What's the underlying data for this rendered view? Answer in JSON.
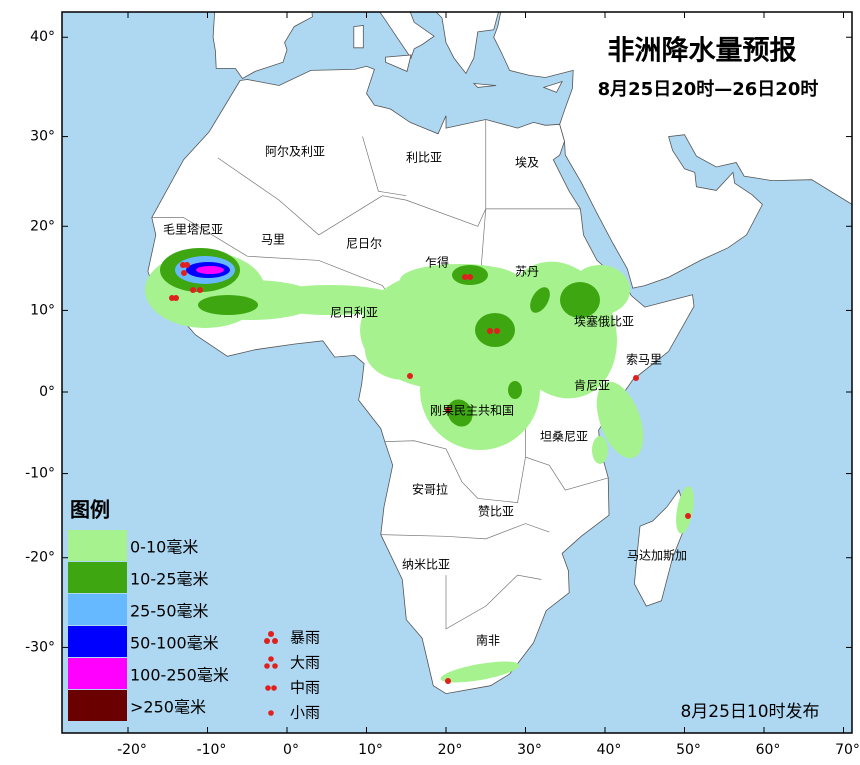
{
  "title": "非洲降水量预报",
  "subtitle": "8月25日20时—26日20时",
  "issued": "8月25日10时发布",
  "map": {
    "lon_ticks": [
      {
        "value": -20,
        "label": "-20°"
      },
      {
        "value": -10,
        "label": "-10°"
      },
      {
        "value": 0,
        "label": "0°"
      },
      {
        "value": 10,
        "label": "10°"
      },
      {
        "value": 20,
        "label": "20°"
      },
      {
        "value": 30,
        "label": "30°"
      },
      {
        "value": 40,
        "label": "40°"
      },
      {
        "value": 50,
        "label": "50°"
      },
      {
        "value": 60,
        "label": "60°"
      },
      {
        "value": 70,
        "label": "70°"
      }
    ],
    "lat_ticks": [
      {
        "value": 40,
        "label": "40°"
      },
      {
        "value": 30,
        "label": "30°"
      },
      {
        "value": 20,
        "label": "20°"
      },
      {
        "value": 10,
        "label": "10°"
      },
      {
        "value": 0,
        "label": "0°"
      },
      {
        "value": -10,
        "label": "-10°"
      },
      {
        "value": -20,
        "label": "-20°"
      },
      {
        "value": -30,
        "label": "-30°"
      }
    ],
    "countries": [
      "阿尔及利亚",
      "利比亚",
      "埃及",
      "毛里塔尼亚",
      "马里",
      "尼日尔",
      "乍得",
      "苏丹",
      "尼日利亚",
      "埃塞俄比亚",
      "索马里",
      "肯尼亚",
      "刚果民主共和国",
      "坦桑尼亚",
      "安哥拉",
      "赞比亚",
      "马达加斯加",
      "纳米比亚",
      "南非"
    ]
  },
  "legend": {
    "title": "图例",
    "bands": [
      {
        "label": "0-10毫米",
        "color": "#a6f28e"
      },
      {
        "label": "10-25毫米",
        "color": "#3da610"
      },
      {
        "label": "25-50毫米",
        "color": "#66b8ff"
      },
      {
        "label": "50-100毫米",
        "color": "#0000ff"
      },
      {
        "label": "100-250毫米",
        "color": "#ff00ff"
      },
      {
        "label": ">250毫米",
        "color": "#6b0000"
      }
    ],
    "symbols": [
      "暴雨",
      "大雨",
      "中雨",
      "小雨"
    ]
  }
}
